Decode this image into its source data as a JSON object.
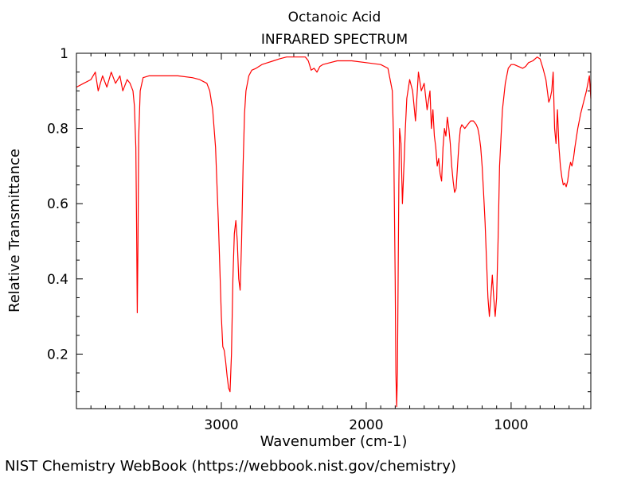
{
  "chart_data": {
    "type": "line",
    "title": "Octanoic Acid",
    "subtitle": "INFRARED SPECTRUM",
    "xlabel": "Wavenumber (cm-1)",
    "ylabel": "Relative Transmittance",
    "xlim": [
      4000,
      450
    ],
    "ylim": [
      0.055,
      1.0
    ],
    "x_ticks": [
      3000,
      2000,
      1000
    ],
    "x_tick_labels": [
      "3000",
      "2000",
      "1000"
    ],
    "y_ticks": [
      0.2,
      0.4,
      0.6,
      0.8,
      1.0
    ],
    "y_tick_labels": [
      "0.2",
      "0.4",
      "0.6",
      "0.8",
      "1"
    ],
    "grid": false,
    "line_color": "#ff0000",
    "series": [
      {
        "x": [
          4000,
          3950,
          3900,
          3870,
          3850,
          3820,
          3790,
          3760,
          3730,
          3700,
          3680,
          3650,
          3630,
          3610,
          3600,
          3590,
          3585,
          3580,
          3575,
          3570,
          3560,
          3540,
          3500,
          3450,
          3400,
          3300,
          3200,
          3150,
          3100,
          3080,
          3060,
          3040,
          3020,
          3000,
          2990,
          2980,
          2970,
          2960,
          2950,
          2940,
          2930,
          2920,
          2910,
          2900,
          2890,
          2880,
          2870,
          2860,
          2850,
          2840,
          2830,
          2810,
          2790,
          2760,
          2720,
          2680,
          2640,
          2600,
          2550,
          2500,
          2450,
          2420,
          2400,
          2380,
          2360,
          2340,
          2320,
          2300,
          2250,
          2200,
          2100,
          2000,
          1900,
          1850,
          1820,
          1810,
          1800,
          1795,
          1790,
          1785,
          1780,
          1775,
          1770,
          1760,
          1750,
          1740,
          1730,
          1720,
          1700,
          1680,
          1660,
          1640,
          1620,
          1600,
          1580,
          1560,
          1550,
          1540,
          1530,
          1520,
          1510,
          1500,
          1490,
          1480,
          1470,
          1460,
          1450,
          1440,
          1430,
          1420,
          1410,
          1400,
          1390,
          1380,
          1370,
          1360,
          1350,
          1340,
          1320,
          1300,
          1280,
          1260,
          1240,
          1230,
          1220,
          1210,
          1200,
          1190,
          1180,
          1170,
          1160,
          1150,
          1140,
          1130,
          1120,
          1110,
          1100,
          1090,
          1080,
          1060,
          1040,
          1020,
          1000,
          980,
          950,
          920,
          900,
          880,
          850,
          820,
          800,
          780,
          760,
          750,
          740,
          730,
          720,
          710,
          700,
          690,
          680,
          670,
          660,
          650,
          640,
          630,
          620,
          610,
          600,
          590,
          580,
          570,
          560,
          540,
          520,
          500,
          480,
          460,
          450
        ],
        "y": [
          0.91,
          0.92,
          0.93,
          0.95,
          0.9,
          0.94,
          0.91,
          0.95,
          0.92,
          0.94,
          0.9,
          0.93,
          0.92,
          0.9,
          0.86,
          0.75,
          0.55,
          0.31,
          0.5,
          0.78,
          0.9,
          0.935,
          0.94,
          0.94,
          0.94,
          0.94,
          0.935,
          0.93,
          0.92,
          0.9,
          0.85,
          0.75,
          0.55,
          0.3,
          0.22,
          0.21,
          0.18,
          0.14,
          0.11,
          0.1,
          0.2,
          0.4,
          0.52,
          0.555,
          0.5,
          0.4,
          0.37,
          0.5,
          0.7,
          0.84,
          0.9,
          0.94,
          0.955,
          0.96,
          0.97,
          0.975,
          0.98,
          0.985,
          0.99,
          0.99,
          0.99,
          0.99,
          0.98,
          0.955,
          0.96,
          0.95,
          0.965,
          0.97,
          0.975,
          0.98,
          0.98,
          0.975,
          0.97,
          0.96,
          0.9,
          0.75,
          0.4,
          0.15,
          0.06,
          0.15,
          0.4,
          0.65,
          0.8,
          0.76,
          0.6,
          0.7,
          0.8,
          0.88,
          0.93,
          0.9,
          0.82,
          0.95,
          0.9,
          0.92,
          0.85,
          0.9,
          0.8,
          0.85,
          0.78,
          0.75,
          0.7,
          0.72,
          0.68,
          0.66,
          0.75,
          0.8,
          0.78,
          0.83,
          0.8,
          0.76,
          0.7,
          0.66,
          0.63,
          0.64,
          0.7,
          0.76,
          0.8,
          0.81,
          0.8,
          0.81,
          0.82,
          0.82,
          0.81,
          0.8,
          0.78,
          0.75,
          0.7,
          0.63,
          0.55,
          0.45,
          0.35,
          0.3,
          0.35,
          0.41,
          0.35,
          0.3,
          0.35,
          0.5,
          0.7,
          0.85,
          0.92,
          0.96,
          0.97,
          0.97,
          0.965,
          0.96,
          0.965,
          0.975,
          0.98,
          0.99,
          0.985,
          0.96,
          0.93,
          0.9,
          0.87,
          0.88,
          0.9,
          0.95,
          0.8,
          0.76,
          0.85,
          0.75,
          0.7,
          0.67,
          0.65,
          0.655,
          0.645,
          0.66,
          0.69,
          0.71,
          0.7,
          0.72,
          0.75,
          0.8,
          0.84,
          0.87,
          0.9,
          0.94,
          0.88
        ]
      }
    ]
  },
  "credit": "NIST Chemistry WebBook (https://webbook.nist.gov/chemistry)"
}
